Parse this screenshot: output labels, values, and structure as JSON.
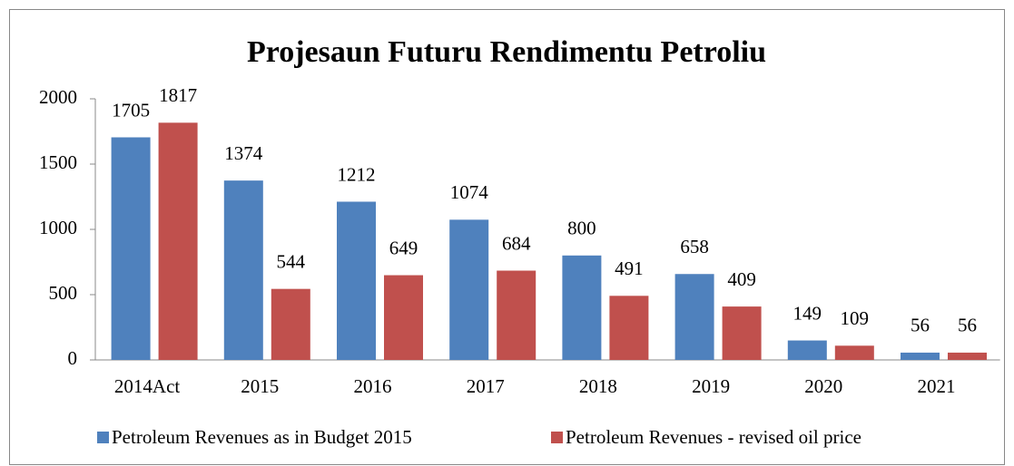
{
  "chart_data": {
    "type": "bar",
    "title": "Projesaun Futuru Rendimentu Petroliu",
    "categories": [
      "2014Act",
      "2015",
      "2016",
      "2017",
      "2018",
      "2019",
      "2020",
      "2021"
    ],
    "series": [
      {
        "name": "Petroleum Revenues as in Budget 2015",
        "color": "#4f81bd",
        "values": [
          1705,
          1374,
          1212,
          1074,
          800,
          658,
          149,
          56
        ]
      },
      {
        "name": "Petroleum Revenues - revised oil price",
        "color": "#c0504d",
        "values": [
          1817,
          544,
          649,
          684,
          491,
          409,
          109,
          56
        ]
      }
    ],
    "ylim": [
      0,
      2000
    ],
    "yticks": [
      0,
      500,
      1000,
      1500,
      2000
    ],
    "grid": false,
    "legend": "bottom"
  }
}
